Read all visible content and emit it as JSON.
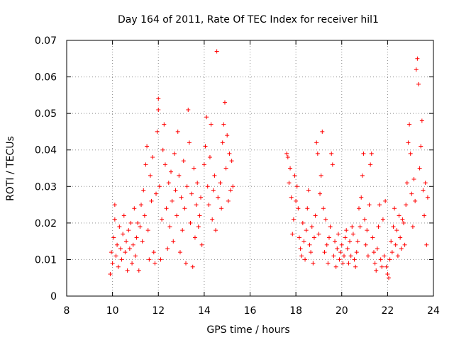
{
  "chart_data": {
    "type": "scatter",
    "title": "Day 164 of 2011, Rate Of TEC Index for receiver hil1",
    "xlabel": "GPS time / hours",
    "ylabel": "ROTI / TECUs",
    "xlim": [
      8,
      24
    ],
    "ylim": [
      0,
      0.07
    ],
    "x_ticks": [
      8,
      10,
      12,
      14,
      16,
      18,
      20,
      22,
      24
    ],
    "y_ticks": [
      0,
      0.01,
      0.02,
      0.03,
      0.04,
      0.05,
      0.06,
      0.07
    ],
    "x_tick_labels": [
      "8",
      "10",
      "12",
      "14",
      "16",
      "18",
      "20",
      "22",
      "24"
    ],
    "y_tick_labels": [
      "0",
      "0.01",
      "0.02",
      "0.03",
      "0.04",
      "0.05",
      "0.06",
      "0.07"
    ],
    "grid": true,
    "marker": "+",
    "color": "#ff0000",
    "series": [
      {
        "name": "ROTI hil1",
        "points": [
          [
            9.9,
            0.006
          ],
          [
            9.95,
            0.012
          ],
          [
            10.0,
            0.009
          ],
          [
            10.05,
            0.016
          ],
          [
            10.1,
            0.025
          ],
          [
            10.1,
            0.021
          ],
          [
            10.15,
            0.011
          ],
          [
            10.2,
            0.014
          ],
          [
            10.25,
            0.008
          ],
          [
            10.3,
            0.019
          ],
          [
            10.35,
            0.013
          ],
          [
            10.4,
            0.01
          ],
          [
            10.45,
            0.017
          ],
          [
            10.5,
            0.022
          ],
          [
            10.55,
            0.012
          ],
          [
            10.6,
            0.015
          ],
          [
            10.65,
            0.007
          ],
          [
            10.7,
            0.018
          ],
          [
            10.75,
            0.013
          ],
          [
            10.8,
            0.02
          ],
          [
            10.85,
            0.009
          ],
          [
            10.9,
            0.014
          ],
          [
            10.95,
            0.024
          ],
          [
            11.0,
            0.011
          ],
          [
            11.05,
            0.016
          ],
          [
            11.1,
            0.02
          ],
          [
            11.15,
            0.007
          ],
          [
            11.2,
            0.019
          ],
          [
            11.25,
            0.025
          ],
          [
            11.3,
            0.015
          ],
          [
            11.35,
            0.029
          ],
          [
            11.4,
            0.022
          ],
          [
            11.45,
            0.036
          ],
          [
            11.5,
            0.041
          ],
          [
            11.55,
            0.018
          ],
          [
            11.6,
            0.01
          ],
          [
            11.65,
            0.033
          ],
          [
            11.7,
            0.026
          ],
          [
            11.75,
            0.038
          ],
          [
            11.8,
            0.012
          ],
          [
            11.85,
            0.009
          ],
          [
            11.9,
            0.028
          ],
          [
            11.95,
            0.045
          ],
          [
            12.0,
            0.051
          ],
          [
            12.0,
            0.054
          ],
          [
            12.05,
            0.03
          ],
          [
            12.1,
            0.01
          ],
          [
            12.15,
            0.021
          ],
          [
            12.2,
            0.04
          ],
          [
            12.25,
            0.047
          ],
          [
            12.3,
            0.036
          ],
          [
            12.35,
            0.024
          ],
          [
            12.4,
            0.013
          ],
          [
            12.45,
            0.031
          ],
          [
            12.5,
            0.019
          ],
          [
            12.55,
            0.034
          ],
          [
            12.6,
            0.026
          ],
          [
            12.65,
            0.015
          ],
          [
            12.7,
            0.039
          ],
          [
            12.75,
            0.029
          ],
          [
            12.8,
            0.022
          ],
          [
            12.85,
            0.045
          ],
          [
            12.9,
            0.033
          ],
          [
            12.95,
            0.012
          ],
          [
            13.0,
            0.027
          ],
          [
            13.05,
            0.018
          ],
          [
            13.1,
            0.037
          ],
          [
            13.15,
            0.024
          ],
          [
            13.2,
            0.009
          ],
          [
            13.25,
            0.03
          ],
          [
            13.3,
            0.051
          ],
          [
            13.35,
            0.042
          ],
          [
            13.4,
            0.02
          ],
          [
            13.45,
            0.028
          ],
          [
            13.5,
            0.008
          ],
          [
            13.55,
            0.035
          ],
          [
            13.6,
            0.016
          ],
          [
            13.65,
            0.025
          ],
          [
            13.7,
            0.031
          ],
          [
            13.75,
            0.019
          ],
          [
            13.8,
            0.022
          ],
          [
            13.85,
            0.027
          ],
          [
            13.9,
            0.014
          ],
          [
            14.0,
            0.036
          ],
          [
            14.05,
            0.041
          ],
          [
            14.1,
            0.049
          ],
          [
            14.15,
            0.03
          ],
          [
            14.2,
            0.025
          ],
          [
            14.25,
            0.038
          ],
          [
            14.3,
            0.047
          ],
          [
            14.35,
            0.021
          ],
          [
            14.4,
            0.029
          ],
          [
            14.45,
            0.033
          ],
          [
            14.5,
            0.018
          ],
          [
            14.55,
            0.067
          ],
          [
            14.6,
            0.027
          ],
          [
            14.7,
            0.031
          ],
          [
            14.75,
            0.024
          ],
          [
            14.8,
            0.042
          ],
          [
            14.85,
            0.047
          ],
          [
            14.9,
            0.053
          ],
          [
            14.95,
            0.035
          ],
          [
            15.0,
            0.044
          ],
          [
            15.05,
            0.026
          ],
          [
            15.1,
            0.039
          ],
          [
            15.15,
            0.029
          ],
          [
            15.2,
            0.037
          ],
          [
            15.25,
            0.03
          ],
          [
            17.6,
            0.039
          ],
          [
            17.65,
            0.038
          ],
          [
            17.7,
            0.031
          ],
          [
            17.75,
            0.035
          ],
          [
            17.8,
            0.027
          ],
          [
            17.85,
            0.017
          ],
          [
            17.9,
            0.021
          ],
          [
            17.95,
            0.033
          ],
          [
            18.0,
            0.026
          ],
          [
            18.05,
            0.03
          ],
          [
            18.1,
            0.024
          ],
          [
            18.15,
            0.016
          ],
          [
            18.2,
            0.013
          ],
          [
            18.25,
            0.011
          ],
          [
            18.3,
            0.02
          ],
          [
            18.35,
            0.015
          ],
          [
            18.4,
            0.01
          ],
          [
            18.45,
            0.018
          ],
          [
            18.5,
            0.024
          ],
          [
            18.55,
            0.029
          ],
          [
            18.6,
            0.014
          ],
          [
            18.65,
            0.012
          ],
          [
            18.7,
            0.019
          ],
          [
            18.75,
            0.009
          ],
          [
            18.8,
            0.016
          ],
          [
            18.85,
            0.022
          ],
          [
            18.9,
            0.042
          ],
          [
            18.95,
            0.039
          ],
          [
            19.0,
            0.017
          ],
          [
            19.05,
            0.028
          ],
          [
            19.1,
            0.033
          ],
          [
            19.15,
            0.045
          ],
          [
            19.2,
            0.024
          ],
          [
            19.25,
            0.012
          ],
          [
            19.3,
            0.021
          ],
          [
            19.35,
            0.014
          ],
          [
            19.4,
            0.009
          ],
          [
            19.45,
            0.016
          ],
          [
            19.5,
            0.019
          ],
          [
            19.55,
            0.039
          ],
          [
            19.6,
            0.036
          ],
          [
            19.65,
            0.011
          ],
          [
            19.7,
            0.015
          ],
          [
            19.75,
            0.008
          ],
          [
            19.8,
            0.013
          ],
          [
            19.85,
            0.017
          ],
          [
            19.9,
            0.01
          ],
          [
            19.95,
            0.012
          ],
          [
            20.0,
            0.014
          ],
          [
            20.05,
            0.009
          ],
          [
            20.1,
            0.011
          ],
          [
            20.15,
            0.016
          ],
          [
            20.2,
            0.018
          ],
          [
            20.25,
            0.013
          ],
          [
            20.3,
            0.009
          ],
          [
            20.35,
            0.015
          ],
          [
            20.4,
            0.011
          ],
          [
            20.45,
            0.019
          ],
          [
            20.5,
            0.017
          ],
          [
            20.55,
            0.01
          ],
          [
            20.6,
            0.008
          ],
          [
            20.65,
            0.012
          ],
          [
            20.7,
            0.015
          ],
          [
            20.75,
            0.024
          ],
          [
            20.8,
            0.019
          ],
          [
            20.85,
            0.027
          ],
          [
            20.9,
            0.033
          ],
          [
            20.95,
            0.039
          ],
          [
            21.0,
            0.021
          ],
          [
            21.05,
            0.014
          ],
          [
            21.1,
            0.018
          ],
          [
            21.15,
            0.011
          ],
          [
            21.2,
            0.025
          ],
          [
            21.25,
            0.036
          ],
          [
            21.3,
            0.039
          ],
          [
            21.35,
            0.016
          ],
          [
            21.4,
            0.012
          ],
          [
            21.45,
            0.009
          ],
          [
            21.5,
            0.007
          ],
          [
            21.55,
            0.013
          ],
          [
            21.6,
            0.019
          ],
          [
            21.65,
            0.025
          ],
          [
            21.7,
            0.01
          ],
          [
            21.75,
            0.008
          ],
          [
            21.8,
            0.021
          ],
          [
            21.85,
            0.011
          ],
          [
            21.9,
            0.026
          ],
          [
            21.95,
            0.008
          ],
          [
            22.0,
            0.006
          ],
          [
            22.05,
            0.005
          ],
          [
            22.1,
            0.01
          ],
          [
            22.15,
            0.015
          ],
          [
            22.2,
            0.012
          ],
          [
            22.25,
            0.019
          ],
          [
            22.3,
            0.024
          ],
          [
            22.35,
            0.014
          ],
          [
            22.4,
            0.018
          ],
          [
            22.45,
            0.011
          ],
          [
            22.5,
            0.022
          ],
          [
            22.55,
            0.016
          ],
          [
            22.6,
            0.013
          ],
          [
            22.65,
            0.021
          ],
          [
            22.7,
            0.02
          ],
          [
            22.75,
            0.014
          ],
          [
            22.8,
            0.025
          ],
          [
            22.85,
            0.031
          ],
          [
            22.9,
            0.042
          ],
          [
            22.95,
            0.047
          ],
          [
            23.0,
            0.039
          ],
          [
            23.05,
            0.028
          ],
          [
            23.1,
            0.019
          ],
          [
            23.15,
            0.032
          ],
          [
            23.2,
            0.026
          ],
          [
            23.25,
            0.062
          ],
          [
            23.3,
            0.065
          ],
          [
            23.35,
            0.058
          ],
          [
            23.4,
            0.035
          ],
          [
            23.45,
            0.041
          ],
          [
            23.5,
            0.048
          ],
          [
            23.55,
            0.029
          ],
          [
            23.6,
            0.022
          ],
          [
            23.65,
            0.031
          ],
          [
            23.7,
            0.014
          ],
          [
            23.75,
            0.027
          ]
        ]
      }
    ]
  }
}
